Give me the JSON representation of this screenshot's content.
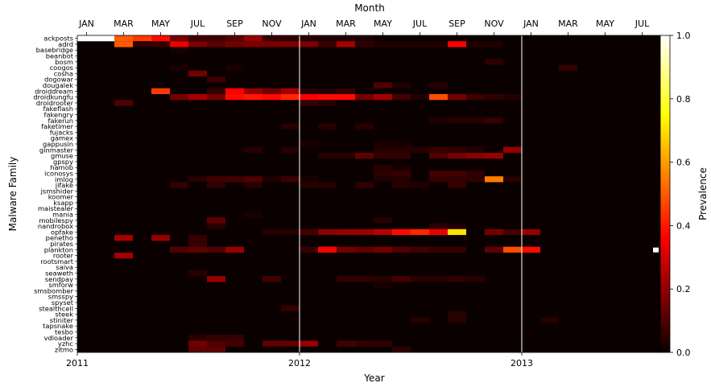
{
  "chart_data": {
    "type": "heatmap",
    "title": "",
    "xlabel": "Year",
    "ylabel": "Malware Family",
    "top_axis_label": "Month",
    "top_ticks": [
      "JAN",
      "MAR",
      "MAY",
      "JUL",
      "SEP",
      "NOV",
      "JAN",
      "MAR",
      "MAY",
      "JUL",
      "SEP",
      "NOV",
      "JAN",
      "MAR",
      "MAY",
      "JUL"
    ],
    "bottom_ticks": [
      "2011",
      "2012",
      "2013"
    ],
    "colorbar_label": "Prevalence",
    "colorbar_ticks": [
      "0.0",
      "0.2",
      "0.4",
      "0.6",
      "0.8",
      "1.0"
    ],
    "colorbar_range": [
      0,
      1
    ],
    "colormap": "hot",
    "n_months": 32,
    "start": "2011-01",
    "year_separators_after_month_index": [
      12,
      24
    ],
    "families": [
      "ackposts",
      "adrd",
      "basebridge",
      "beanbot",
      "bosm",
      "coogos",
      "cosha",
      "dogowar",
      "dougalek",
      "droiddream",
      "droidkungfu",
      "droidrooter",
      "fakeflash",
      "fakengry",
      "fakerun",
      "faketimer",
      "fujacks",
      "gamex",
      "gappusin",
      "ginmaster",
      "gmuse",
      "gpspy",
      "hamob",
      "iconosys",
      "imlog",
      "jifake",
      "jsmshider",
      "koomer",
      "ksapp",
      "maistealer",
      "mania",
      "mobilespy",
      "nandrobox",
      "opfake",
      "penetho",
      "pirates",
      "plankton",
      "rooter",
      "rootsmart",
      "saiva",
      "seaweth",
      "sendpay",
      "smforw",
      "smsbomber",
      "smsspy",
      "spyset",
      "stealthcell",
      "steek",
      "stiniter",
      "tapsnake",
      "tesbo",
      "vdloader",
      "yzhc",
      "zitmo"
    ],
    "values": {
      "ackposts": [
        [
          0,
          1.0
        ],
        [
          1,
          1.0
        ],
        [
          2,
          0.5
        ],
        [
          3,
          0.45
        ],
        [
          4,
          0.38
        ],
        [
          5,
          0.15
        ],
        [
          6,
          0.08
        ],
        [
          7,
          0.07
        ],
        [
          8,
          0.1
        ],
        [
          9,
          0.2
        ],
        [
          10,
          0.06
        ],
        [
          11,
          0.05
        ],
        [
          12,
          0.04
        ],
        [
          13,
          0.03
        ],
        [
          14,
          0.03
        ],
        [
          15,
          0.03
        ]
      ],
      "adrd": [
        [
          2,
          0.5
        ],
        [
          3,
          0.05
        ],
        [
          4,
          0.06
        ],
        [
          5,
          0.32
        ],
        [
          6,
          0.16
        ],
        [
          7,
          0.12
        ],
        [
          8,
          0.15
        ],
        [
          9,
          0.16
        ],
        [
          10,
          0.16
        ],
        [
          11,
          0.16
        ],
        [
          12,
          0.16
        ],
        [
          13,
          0.07
        ],
        [
          14,
          0.22
        ],
        [
          15,
          0.05
        ],
        [
          16,
          0.03
        ],
        [
          17,
          0.03
        ],
        [
          18,
          0.03
        ],
        [
          19,
          0.03
        ],
        [
          20,
          0.35
        ],
        [
          21,
          0.03
        ],
        [
          22,
          0.03
        ]
      ],
      "basebridge": [
        [
          5,
          0.02
        ]
      ],
      "bosm": [
        [
          22,
          0.05
        ]
      ],
      "coogos": [
        [
          5,
          0.02
        ],
        [
          8,
          0.02
        ],
        [
          26,
          0.06
        ]
      ],
      "cosha": [
        [
          6,
          0.15
        ]
      ],
      "dogowar": [
        [
          7,
          0.07
        ]
      ],
      "dougalek": [
        [
          16,
          0.1
        ],
        [
          17,
          0.03
        ],
        [
          19,
          0.04
        ]
      ],
      "droiddream": [
        [
          4,
          0.45
        ],
        [
          7,
          0.06
        ],
        [
          8,
          0.35
        ],
        [
          9,
          0.2
        ],
        [
          10,
          0.15
        ],
        [
          11,
          0.22
        ],
        [
          12,
          0.04
        ],
        [
          13,
          0.03
        ],
        [
          14,
          0.06
        ]
      ],
      "droidkungfu": [
        [
          5,
          0.15
        ],
        [
          6,
          0.22
        ],
        [
          7,
          0.15
        ],
        [
          8,
          0.38
        ],
        [
          9,
          0.4
        ],
        [
          10,
          0.38
        ],
        [
          11,
          0.42
        ],
        [
          12,
          0.35
        ],
        [
          13,
          0.38
        ],
        [
          14,
          0.38
        ],
        [
          15,
          0.15
        ],
        [
          16,
          0.22
        ],
        [
          17,
          0.08
        ],
        [
          18,
          0.03
        ],
        [
          19,
          0.48
        ],
        [
          20,
          0.15
        ],
        [
          21,
          0.07
        ],
        [
          22,
          0.05
        ],
        [
          23,
          0.03
        ]
      ],
      "droidrooter": [
        [
          2,
          0.1
        ],
        [
          12,
          0.06
        ],
        [
          13,
          0.04
        ]
      ],
      "fakerun": [
        [
          19,
          0.03
        ],
        [
          20,
          0.04
        ],
        [
          21,
          0.04
        ],
        [
          22,
          0.06
        ]
      ],
      "faketimer": [
        [
          11,
          0.04
        ],
        [
          13,
          0.04
        ],
        [
          15,
          0.04
        ]
      ],
      "gappusin": [
        [
          12,
          0.02
        ],
        [
          16,
          0.02
        ],
        [
          17,
          0.02
        ]
      ],
      "ginmaster": [
        [
          9,
          0.04
        ],
        [
          11,
          0.04
        ],
        [
          16,
          0.04
        ],
        [
          17,
          0.04
        ],
        [
          18,
          0.04
        ],
        [
          19,
          0.06
        ],
        [
          20,
          0.05
        ],
        [
          21,
          0.03
        ],
        [
          23,
          0.2
        ]
      ],
      "gmuse": [
        [
          13,
          0.04
        ],
        [
          14,
          0.04
        ],
        [
          15,
          0.12
        ],
        [
          16,
          0.06
        ],
        [
          17,
          0.06
        ],
        [
          19,
          0.1
        ],
        [
          20,
          0.15
        ],
        [
          21,
          0.18
        ],
        [
          22,
          0.2
        ]
      ],
      "hamob": [
        [
          16,
          0.04
        ],
        [
          17,
          0.02
        ]
      ],
      "iconosys": [
        [
          16,
          0.05
        ],
        [
          17,
          0.06
        ],
        [
          19,
          0.08
        ],
        [
          20,
          0.08
        ],
        [
          21,
          0.05
        ]
      ],
      "imlog": [
        [
          6,
          0.04
        ],
        [
          7,
          0.08
        ],
        [
          8,
          0.08
        ],
        [
          9,
          0.1
        ],
        [
          10,
          0.03
        ],
        [
          11,
          0.07
        ],
        [
          12,
          0.02
        ],
        [
          16,
          0.03
        ],
        [
          17,
          0.04
        ],
        [
          19,
          0.06
        ],
        [
          20,
          0.06
        ],
        [
          21,
          0.05
        ],
        [
          22,
          0.55
        ],
        [
          23,
          0.04
        ]
      ],
      "jifake": [
        [
          5,
          0.06
        ],
        [
          7,
          0.05
        ],
        [
          9,
          0.04
        ],
        [
          12,
          0.04
        ],
        [
          13,
          0.04
        ],
        [
          15,
          0.05
        ],
        [
          17,
          0.04
        ],
        [
          18,
          0.03
        ],
        [
          20,
          0.06
        ]
      ],
      "mania": [
        [
          9,
          0.02
        ]
      ],
      "mobilespy": [
        [
          7,
          0.12
        ],
        [
          16,
          0.04
        ]
      ],
      "nandrobox": [
        [
          7,
          0.04
        ],
        [
          19,
          0.05
        ],
        [
          20,
          0.03
        ]
      ],
      "opfake": [
        [
          10,
          0.04
        ],
        [
          11,
          0.04
        ],
        [
          12,
          0.08
        ],
        [
          13,
          0.18
        ],
        [
          14,
          0.2
        ],
        [
          15,
          0.2
        ],
        [
          16,
          0.25
        ],
        [
          17,
          0.38
        ],
        [
          18,
          0.42
        ],
        [
          19,
          0.32
        ],
        [
          20,
          0.7
        ],
        [
          22,
          0.15
        ],
        [
          23,
          0.08
        ],
        [
          24,
          0.2
        ]
      ],
      "penetho": [
        [
          2,
          0.22
        ],
        [
          4,
          0.2
        ],
        [
          6,
          0.06
        ]
      ],
      "pirates": [
        [
          6,
          0.06
        ]
      ],
      "plankton": [
        [
          5,
          0.1
        ],
        [
          6,
          0.12
        ],
        [
          7,
          0.1
        ],
        [
          8,
          0.2
        ],
        [
          12,
          0.06
        ],
        [
          13,
          0.35
        ],
        [
          14,
          0.15
        ],
        [
          15,
          0.12
        ],
        [
          16,
          0.15
        ],
        [
          17,
          0.1
        ],
        [
          18,
          0.08
        ],
        [
          19,
          0.06
        ],
        [
          20,
          0.06
        ],
        [
          22,
          0.12
        ],
        [
          23,
          0.48
        ],
        [
          24,
          0.38
        ]
      ],
      "rooter": [
        [
          2,
          0.22
        ]
      ],
      "seaweth": [
        [
          6,
          0.04
        ]
      ],
      "sendpay": [
        [
          7,
          0.2
        ],
        [
          10,
          0.08
        ],
        [
          14,
          0.05
        ],
        [
          15,
          0.05
        ],
        [
          16,
          0.04
        ],
        [
          17,
          0.08
        ],
        [
          18,
          0.04
        ],
        [
          19,
          0.04
        ],
        [
          20,
          0.05
        ],
        [
          21,
          0.04
        ]
      ],
      "smforw": [
        [
          16,
          0.02
        ]
      ],
      "stealthcell": [
        [
          11,
          0.06
        ]
      ],
      "steek": [
        [
          20,
          0.04
        ]
      ],
      "stiniter": [
        [
          18,
          0.04
        ],
        [
          20,
          0.04
        ],
        [
          25,
          0.04
        ]
      ],
      "vdloader": [
        [
          6,
          0.04
        ],
        [
          7,
          0.06
        ],
        [
          8,
          0.06
        ]
      ],
      "yzhc": [
        [
          6,
          0.15
        ],
        [
          7,
          0.1
        ],
        [
          8,
          0.08
        ],
        [
          10,
          0.12
        ],
        [
          11,
          0.12
        ],
        [
          12,
          0.2
        ],
        [
          14,
          0.08
        ],
        [
          15,
          0.06
        ],
        [
          16,
          0.05
        ]
      ],
      "zitmo": [
        [
          6,
          0.12
        ],
        [
          7,
          0.12
        ],
        [
          17,
          0.05
        ]
      ]
    },
    "outlier_marker": {
      "family": "plankton",
      "month_index": 32,
      "value": 1.0
    }
  }
}
